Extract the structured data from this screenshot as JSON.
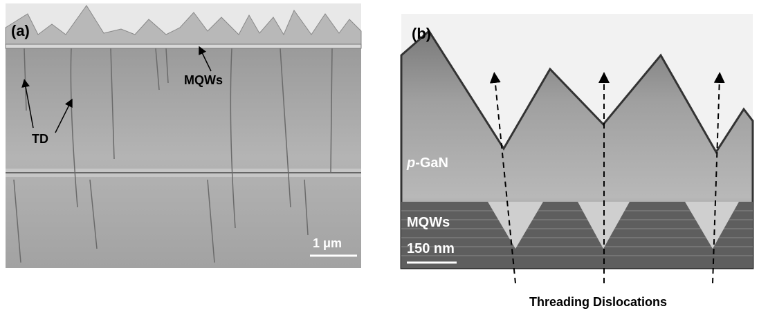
{
  "panels": [
    {
      "label": "(a)",
      "annotations": [
        "MQWs",
        "TD"
      ],
      "scale_bar": "1 μm"
    },
    {
      "label": "(b)",
      "layer_label": {
        "italic": "p",
        "rest": "-GaN"
      },
      "annotations": [
        "MQWs"
      ],
      "scale_bar": "150 nm"
    }
  ],
  "caption": "Threading Dislocations"
}
